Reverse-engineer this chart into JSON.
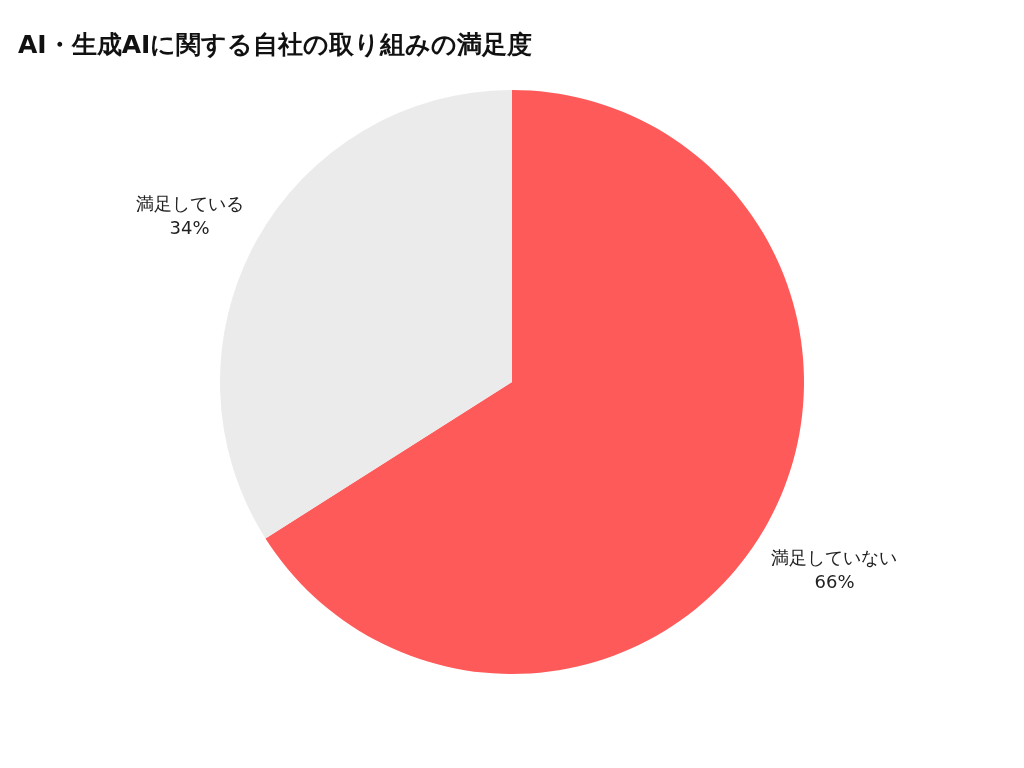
{
  "chart_data": {
    "type": "pie",
    "title": "AI・生成AIに関する自社の取り組みの満足度",
    "categories": [
      "満足していない",
      "満足している"
    ],
    "values": [
      66,
      34
    ],
    "colors": [
      "#ff5a5a",
      "#ebebeb"
    ],
    "value_labels": [
      "66%",
      "34%"
    ],
    "legend": false
  }
}
